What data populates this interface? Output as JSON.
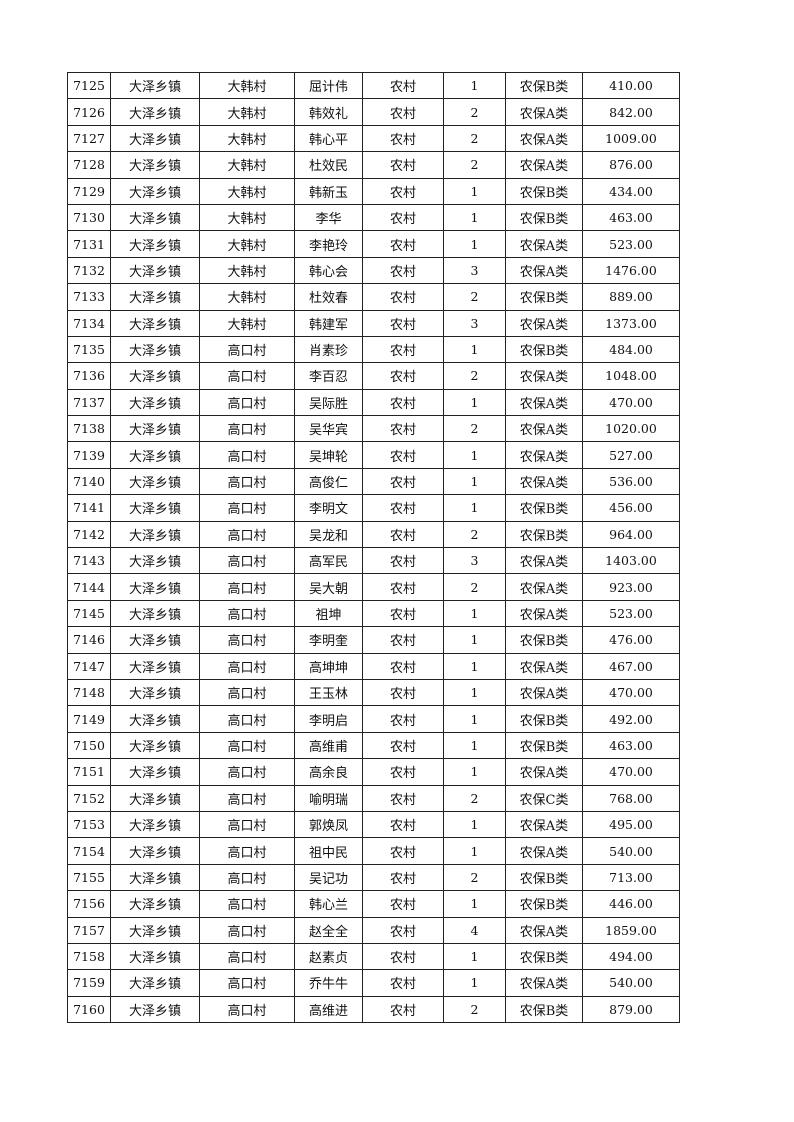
{
  "table": {
    "rows": [
      [
        "7125",
        "大泽乡镇",
        "大韩村",
        "屈计伟",
        "农村",
        "1",
        "农保B类",
        "410.00"
      ],
      [
        "7126",
        "大泽乡镇",
        "大韩村",
        "韩效礼",
        "农村",
        "2",
        "农保A类",
        "842.00"
      ],
      [
        "7127",
        "大泽乡镇",
        "大韩村",
        "韩心平",
        "农村",
        "2",
        "农保A类",
        "1009.00"
      ],
      [
        "7128",
        "大泽乡镇",
        "大韩村",
        "杜效民",
        "农村",
        "2",
        "农保A类",
        "876.00"
      ],
      [
        "7129",
        "大泽乡镇",
        "大韩村",
        "韩新玉",
        "农村",
        "1",
        "农保B类",
        "434.00"
      ],
      [
        "7130",
        "大泽乡镇",
        "大韩村",
        "李华",
        "农村",
        "1",
        "农保B类",
        "463.00"
      ],
      [
        "7131",
        "大泽乡镇",
        "大韩村",
        "李艳玲",
        "农村",
        "1",
        "农保A类",
        "523.00"
      ],
      [
        "7132",
        "大泽乡镇",
        "大韩村",
        "韩心会",
        "农村",
        "3",
        "农保A类",
        "1476.00"
      ],
      [
        "7133",
        "大泽乡镇",
        "大韩村",
        "杜效春",
        "农村",
        "2",
        "农保B类",
        "889.00"
      ],
      [
        "7134",
        "大泽乡镇",
        "大韩村",
        "韩建军",
        "农村",
        "3",
        "农保A类",
        "1373.00"
      ],
      [
        "7135",
        "大泽乡镇",
        "高口村",
        "肖素珍",
        "农村",
        "1",
        "农保B类",
        "484.00"
      ],
      [
        "7136",
        "大泽乡镇",
        "高口村",
        "李百忍",
        "农村",
        "2",
        "农保A类",
        "1048.00"
      ],
      [
        "7137",
        "大泽乡镇",
        "高口村",
        "吴际胜",
        "农村",
        "1",
        "农保A类",
        "470.00"
      ],
      [
        "7138",
        "大泽乡镇",
        "高口村",
        "吴华宾",
        "农村",
        "2",
        "农保A类",
        "1020.00"
      ],
      [
        "7139",
        "大泽乡镇",
        "高口村",
        "吴坤轮",
        "农村",
        "1",
        "农保A类",
        "527.00"
      ],
      [
        "7140",
        "大泽乡镇",
        "高口村",
        "高俊仁",
        "农村",
        "1",
        "农保A类",
        "536.00"
      ],
      [
        "7141",
        "大泽乡镇",
        "高口村",
        "李明文",
        "农村",
        "1",
        "农保B类",
        "456.00"
      ],
      [
        "7142",
        "大泽乡镇",
        "高口村",
        "吴龙和",
        "农村",
        "2",
        "农保B类",
        "964.00"
      ],
      [
        "7143",
        "大泽乡镇",
        "高口村",
        "高军民",
        "农村",
        "3",
        "农保A类",
        "1403.00"
      ],
      [
        "7144",
        "大泽乡镇",
        "高口村",
        "吴大朝",
        "农村",
        "2",
        "农保A类",
        "923.00"
      ],
      [
        "7145",
        "大泽乡镇",
        "高口村",
        "祖坤",
        "农村",
        "1",
        "农保A类",
        "523.00"
      ],
      [
        "7146",
        "大泽乡镇",
        "高口村",
        "李明奎",
        "农村",
        "1",
        "农保B类",
        "476.00"
      ],
      [
        "7147",
        "大泽乡镇",
        "高口村",
        "高坤坤",
        "农村",
        "1",
        "农保A类",
        "467.00"
      ],
      [
        "7148",
        "大泽乡镇",
        "高口村",
        "王玉林",
        "农村",
        "1",
        "农保A类",
        "470.00"
      ],
      [
        "7149",
        "大泽乡镇",
        "高口村",
        "李明启",
        "农村",
        "1",
        "农保B类",
        "492.00"
      ],
      [
        "7150",
        "大泽乡镇",
        "高口村",
        "高维甫",
        "农村",
        "1",
        "农保B类",
        "463.00"
      ],
      [
        "7151",
        "大泽乡镇",
        "高口村",
        "高余良",
        "农村",
        "1",
        "农保A类",
        "470.00"
      ],
      [
        "7152",
        "大泽乡镇",
        "高口村",
        "喻明瑞",
        "农村",
        "2",
        "农保C类",
        "768.00"
      ],
      [
        "7153",
        "大泽乡镇",
        "高口村",
        "郭焕凤",
        "农村",
        "1",
        "农保A类",
        "495.00"
      ],
      [
        "7154",
        "大泽乡镇",
        "高口村",
        "祖中民",
        "农村",
        "1",
        "农保A类",
        "540.00"
      ],
      [
        "7155",
        "大泽乡镇",
        "高口村",
        "吴记功",
        "农村",
        "2",
        "农保B类",
        "713.00"
      ],
      [
        "7156",
        "大泽乡镇",
        "高口村",
        "韩心兰",
        "农村",
        "1",
        "农保B类",
        "446.00"
      ],
      [
        "7157",
        "大泽乡镇",
        "高口村",
        "赵全全",
        "农村",
        "4",
        "农保A类",
        "1859.00"
      ],
      [
        "7158",
        "大泽乡镇",
        "高口村",
        "赵素贞",
        "农村",
        "1",
        "农保B类",
        "494.00"
      ],
      [
        "7159",
        "大泽乡镇",
        "高口村",
        "乔牛牛",
        "农村",
        "1",
        "农保A类",
        "540.00"
      ],
      [
        "7160",
        "大泽乡镇",
        "高口村",
        "高维进",
        "农村",
        "2",
        "农保B类",
        "879.00"
      ]
    ]
  }
}
